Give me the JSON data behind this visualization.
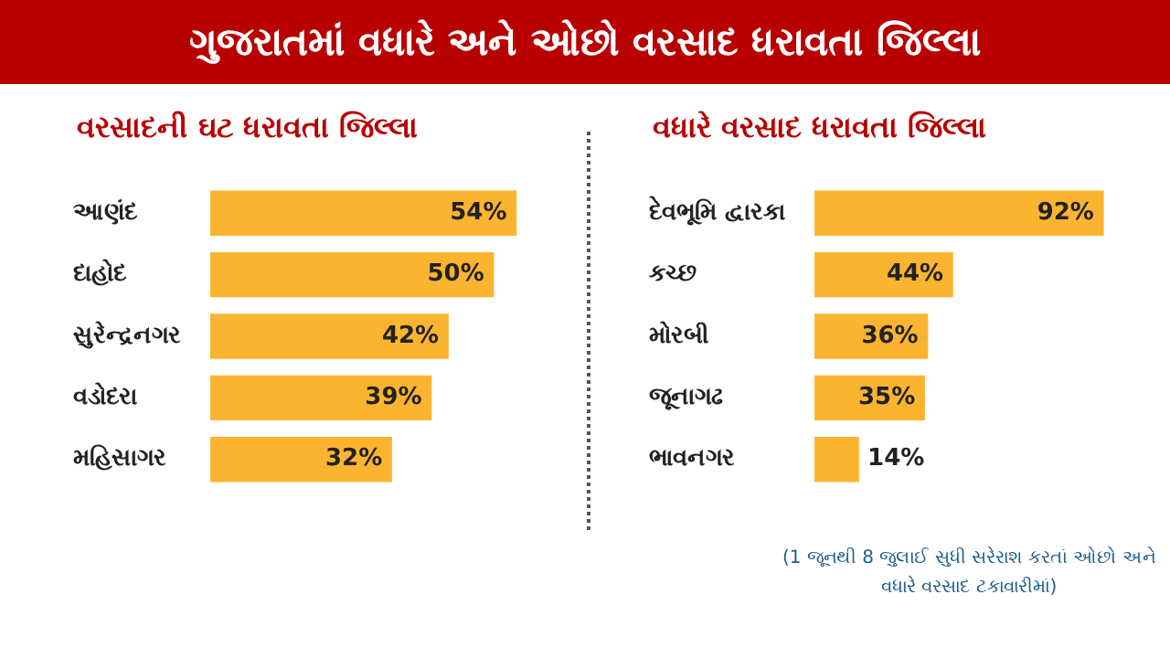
{
  "chart_data": [
    {
      "type": "bar",
      "orientation": "horizontal",
      "title": "ગુજરાતમાં વધારે અને ઓછો વરસાદ ધરાવતા જિલ્લા",
      "subtitle": "વરસાદની ઘટ ધરાવતા જિલ્લા",
      "categories": [
        "આણંદ",
        "દાહોદ",
        "સુરેન્દ્રનગર",
        "વડોદરા",
        "મહિસાગર"
      ],
      "values": [
        54,
        50,
        42,
        39,
        32
      ],
      "value_labels": [
        "54%",
        "50%",
        "42%",
        "39%",
        "32%"
      ],
      "color": "#fbb430",
      "grid": false,
      "legend": false,
      "tick_labels": "y"
    },
    {
      "type": "bar",
      "orientation": "horizontal",
      "subtitle": "વધારે વરસાદ ધરાવતા જિલ્લા",
      "categories": [
        "દેવભૂમિ દ્વારકા",
        "કચ્છ",
        "મોરબી",
        "જૂનાગઢ",
        "ભાવનગર"
      ],
      "values": [
        92,
        44,
        36,
        35,
        14
      ],
      "value_labels": [
        "92%",
        "44%",
        "36%",
        "35%",
        "14%"
      ],
      "color": "#fbb430",
      "grid": false,
      "legend": false,
      "tick_labels": "y",
      "annotations": [
        "(1 જૂનથી 8 જુલાઈ સુધી સરેરાશ કરતાં ઓછો અને વધારે વરસાદ ટકાવારીમાં)"
      ]
    }
  ]
}
